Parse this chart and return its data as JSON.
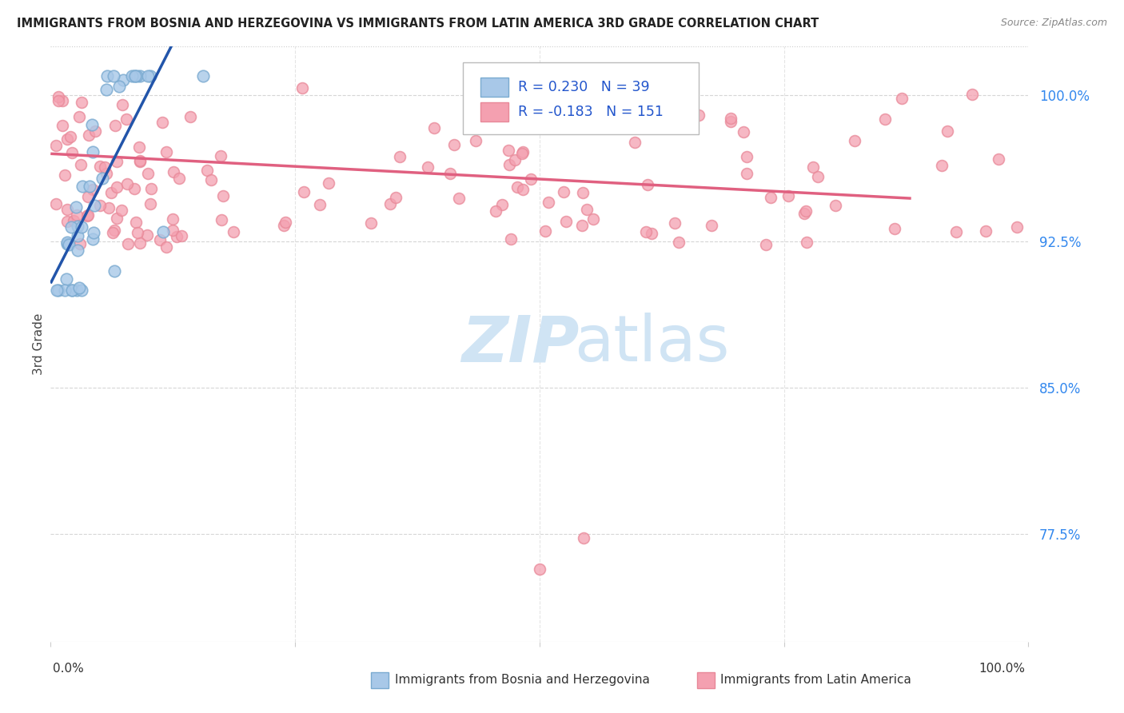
{
  "title": "IMMIGRANTS FROM BOSNIA AND HERZEGOVINA VS IMMIGRANTS FROM LATIN AMERICA 3RD GRADE CORRELATION CHART",
  "source": "Source: ZipAtlas.com",
  "ylabel": "3rd Grade",
  "ytick_values": [
    1.0,
    0.925,
    0.85,
    0.775
  ],
  "xlim": [
    0.0,
    1.0
  ],
  "ylim": [
    0.72,
    1.025
  ],
  "legend_R_blue": "0.230",
  "legend_N_blue": "39",
  "legend_R_pink": "-0.183",
  "legend_N_pink": "151",
  "blue_fill": "#A8C8E8",
  "blue_edge": "#7AAAD0",
  "pink_fill": "#F4A0B0",
  "pink_edge": "#E88898",
  "blue_line_color": "#2255AA",
  "pink_line_color": "#E06080",
  "legend_text_color": "#2255CC",
  "ytick_color": "#3388EE",
  "xtick_color": "#333333",
  "grid_color": "#CCCCCC",
  "bg_color": "#FFFFFF",
  "watermark_zip": "ZIP",
  "watermark_atlas": "atlas",
  "watermark_color": "#D0E4F4"
}
